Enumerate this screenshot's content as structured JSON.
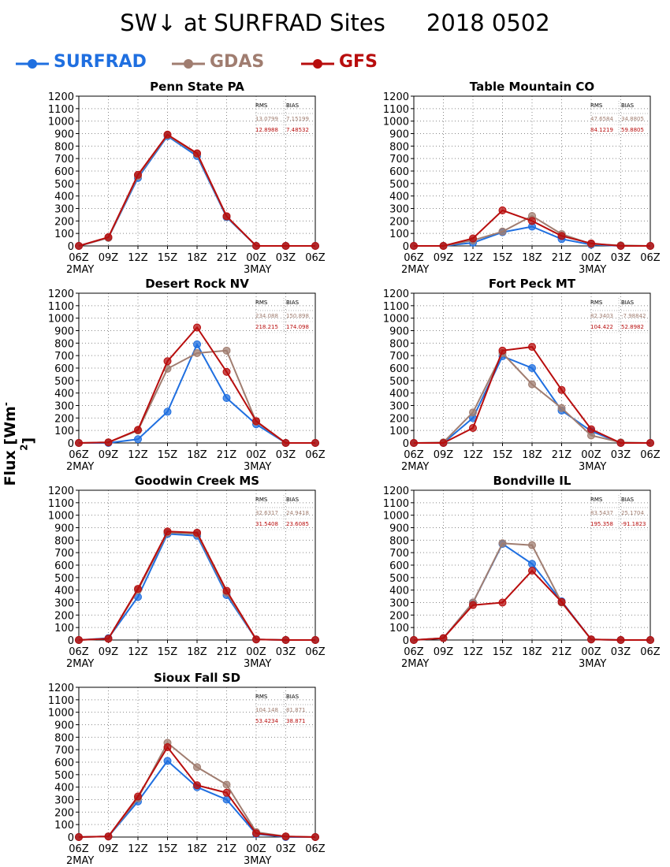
{
  "title": {
    "main": "SW↓ at SURFRAD Sites",
    "date": "2018 0502"
  },
  "y_axis_label": {
    "text": "Flux [Wm",
    "exp": "-2",
    "close": "]"
  },
  "legend": [
    {
      "name": "SURFRAD",
      "color": "#1f6fe0"
    },
    {
      "name": "GDAS",
      "color": "#a07d70"
    },
    {
      "name": "GFS",
      "color": "#b80d0d"
    }
  ],
  "stats_headers": [
    "RMS",
    "BIAS"
  ],
  "chart_data": [
    {
      "type": "line",
      "title": "Penn State PA",
      "categories": [
        "06Z",
        "09Z",
        "12Z",
        "15Z",
        "18Z",
        "21Z",
        "00Z",
        "03Z",
        "06Z"
      ],
      "date_labels": [
        "2MAY",
        "3MAY"
      ],
      "ylim": [
        0,
        1200
      ],
      "yticks": [
        0,
        100,
        200,
        300,
        400,
        500,
        600,
        700,
        800,
        900,
        1000,
        1100,
        1200
      ],
      "grid": true,
      "series": [
        {
          "name": "SURFRAD",
          "color": "#1f6fe0",
          "values": [
            0,
            65,
            545,
            880,
            720,
            230,
            0,
            0,
            0
          ]
        },
        {
          "name": "GDAS",
          "color": "#a07d70",
          "values": [
            0,
            65,
            560,
            888,
            735,
            235,
            0,
            0,
            0
          ]
        },
        {
          "name": "GFS",
          "color": "#b80d0d",
          "values": [
            0,
            70,
            570,
            892,
            742,
            238,
            0,
            0,
            0
          ]
        }
      ],
      "stats": [
        {
          "rms": "13.0799",
          "bias": "7.15199",
          "color": "#a07d70"
        },
        {
          "rms": "12.8988",
          "bias": "7.48532",
          "color": "#b80d0d"
        }
      ]
    },
    {
      "type": "line",
      "title": "Table Mountain CO",
      "categories": [
        "06Z",
        "09Z",
        "12Z",
        "15Z",
        "18Z",
        "21Z",
        "00Z",
        "03Z",
        "06Z"
      ],
      "date_labels": [
        "2MAY",
        "3MAY"
      ],
      "ylim": [
        0,
        1200
      ],
      "yticks": [
        0,
        100,
        200,
        300,
        400,
        500,
        600,
        700,
        800,
        900,
        1000,
        1100,
        1200
      ],
      "grid": true,
      "series": [
        {
          "name": "SURFRAD",
          "color": "#1f6fe0",
          "values": [
            0,
            0,
            25,
            110,
            155,
            55,
            10,
            0,
            0
          ]
        },
        {
          "name": "GDAS",
          "color": "#a07d70",
          "values": [
            0,
            0,
            45,
            115,
            240,
            95,
            15,
            5,
            0
          ]
        },
        {
          "name": "GFS",
          "color": "#b80d0d",
          "values": [
            0,
            0,
            60,
            285,
            200,
            80,
            20,
            0,
            0
          ]
        }
      ],
      "stats": [
        {
          "rms": "47.6584",
          "bias": "34.8805",
          "color": "#a07d70"
        },
        {
          "rms": "84.1219",
          "bias": "59.8805",
          "color": "#b80d0d"
        }
      ]
    },
    {
      "type": "line",
      "title": "Desert Rock NV",
      "categories": [
        "06Z",
        "09Z",
        "12Z",
        "15Z",
        "18Z",
        "21Z",
        "00Z",
        "03Z",
        "06Z"
      ],
      "date_labels": [
        "2MAY",
        "3MAY"
      ],
      "ylim": [
        0,
        1200
      ],
      "yticks": [
        0,
        100,
        200,
        300,
        400,
        500,
        600,
        700,
        800,
        900,
        1000,
        1100,
        1200
      ],
      "grid": true,
      "series": [
        {
          "name": "SURFRAD",
          "color": "#1f6fe0",
          "values": [
            0,
            0,
            30,
            250,
            790,
            360,
            150,
            0,
            0
          ]
        },
        {
          "name": "GDAS",
          "color": "#a07d70",
          "values": [
            0,
            5,
            100,
            595,
            720,
            740,
            170,
            0,
            0
          ]
        },
        {
          "name": "GFS",
          "color": "#b80d0d",
          "values": [
            0,
            5,
            105,
            655,
            925,
            570,
            175,
            0,
            0
          ]
        }
      ],
      "stats": [
        {
          "rms": "234.088",
          "bias": "150.898",
          "color": "#a07d70"
        },
        {
          "rms": "218.215",
          "bias": "174.098",
          "color": "#b80d0d"
        }
      ]
    },
    {
      "type": "line",
      "title": "Fort Peck MT",
      "categories": [
        "06Z",
        "09Z",
        "12Z",
        "15Z",
        "18Z",
        "21Z",
        "00Z",
        "03Z",
        "06Z"
      ],
      "date_labels": [
        "2MAY",
        "3MAY"
      ],
      "ylim": [
        0,
        1200
      ],
      "yticks": [
        0,
        100,
        200,
        300,
        400,
        500,
        600,
        700,
        800,
        900,
        1000,
        1100,
        1200
      ],
      "grid": true,
      "series": [
        {
          "name": "SURFRAD",
          "color": "#1f6fe0",
          "values": [
            0,
            0,
            200,
            695,
            600,
            260,
            95,
            0,
            0
          ]
        },
        {
          "name": "GDAS",
          "color": "#a07d70",
          "values": [
            0,
            5,
            245,
            720,
            470,
            280,
            60,
            5,
            0
          ]
        },
        {
          "name": "GFS",
          "color": "#b80d0d",
          "values": [
            0,
            0,
            120,
            740,
            770,
            425,
            110,
            0,
            0
          ]
        }
      ],
      "stats": [
        {
          "rms": "82.3403",
          "bias": "-7.98842",
          "color": "#a07d70"
        },
        {
          "rms": "104.422",
          "bias": "52.8982",
          "color": "#b80d0d"
        }
      ]
    },
    {
      "type": "line",
      "title": "Goodwin Creek MS",
      "categories": [
        "06Z",
        "09Z",
        "12Z",
        "15Z",
        "18Z",
        "21Z",
        "00Z",
        "03Z",
        "06Z"
      ],
      "date_labels": [
        "2MAY",
        "3MAY"
      ],
      "ylim": [
        0,
        1200
      ],
      "yticks": [
        0,
        100,
        200,
        300,
        400,
        500,
        600,
        700,
        800,
        900,
        1000,
        1100,
        1200
      ],
      "grid": true,
      "series": [
        {
          "name": "SURFRAD",
          "color": "#1f6fe0",
          "values": [
            0,
            15,
            345,
            850,
            835,
            360,
            5,
            0,
            0
          ]
        },
        {
          "name": "GDAS",
          "color": "#a07d70",
          "values": [
            0,
            10,
            400,
            860,
            850,
            380,
            5,
            0,
            0
          ]
        },
        {
          "name": "GFS",
          "color": "#b80d0d",
          "values": [
            0,
            10,
            410,
            870,
            860,
            395,
            5,
            0,
            0
          ]
        }
      ],
      "stats": [
        {
          "rms": "32.6317",
          "bias": "24.9418",
          "color": "#a07d70"
        },
        {
          "rms": "31.5408",
          "bias": "23.6085",
          "color": "#b80d0d"
        }
      ]
    },
    {
      "type": "line",
      "title": "Bondville IL",
      "categories": [
        "06Z",
        "09Z",
        "12Z",
        "15Z",
        "18Z",
        "21Z",
        "00Z",
        "03Z",
        "06Z"
      ],
      "date_labels": [
        "2MAY",
        "3MAY"
      ],
      "ylim": [
        0,
        1200
      ],
      "yticks": [
        0,
        100,
        200,
        300,
        400,
        500,
        600,
        700,
        800,
        900,
        1000,
        1100,
        1200
      ],
      "grid": true,
      "series": [
        {
          "name": "SURFRAD",
          "color": "#1f6fe0",
          "values": [
            0,
            15,
            300,
            770,
            610,
            310,
            5,
            0,
            0
          ]
        },
        {
          "name": "GDAS",
          "color": "#a07d70",
          "values": [
            0,
            15,
            300,
            775,
            760,
            300,
            5,
            0,
            0
          ]
        },
        {
          "name": "GFS",
          "color": "#b80d0d",
          "values": [
            0,
            15,
            280,
            300,
            555,
            305,
            5,
            0,
            0
          ]
        }
      ],
      "stats": [
        {
          "rms": "83.5437",
          "bias": "25.1704",
          "color": "#a07d70"
        },
        {
          "rms": "195.358",
          "bias": "-91.1823",
          "color": "#b80d0d"
        }
      ]
    },
    {
      "type": "line",
      "title": "Sioux Fall SD",
      "categories": [
        "06Z",
        "09Z",
        "12Z",
        "15Z",
        "18Z",
        "21Z",
        "00Z",
        "03Z",
        "06Z"
      ],
      "date_labels": [
        "2MAY",
        "3MAY"
      ],
      "ylim": [
        0,
        1200
      ],
      "yticks": [
        0,
        100,
        200,
        300,
        400,
        500,
        600,
        700,
        800,
        900,
        1000,
        1100,
        1200
      ],
      "grid": true,
      "series": [
        {
          "name": "SURFRAD",
          "color": "#1f6fe0",
          "values": [
            0,
            5,
            285,
            610,
            400,
            300,
            25,
            0,
            0
          ]
        },
        {
          "name": "GDAS",
          "color": "#a07d70",
          "values": [
            0,
            5,
            310,
            755,
            560,
            420,
            40,
            5,
            0
          ]
        },
        {
          "name": "GFS",
          "color": "#b80d0d",
          "values": [
            0,
            5,
            325,
            720,
            415,
            355,
            30,
            5,
            0
          ]
        }
      ],
      "stats": [
        {
          "rms": "104.148",
          "bias": "81.871",
          "color": "#a07d70"
        },
        {
          "rms": "53.4234",
          "bias": "38.871",
          "color": "#b80d0d"
        }
      ]
    }
  ]
}
